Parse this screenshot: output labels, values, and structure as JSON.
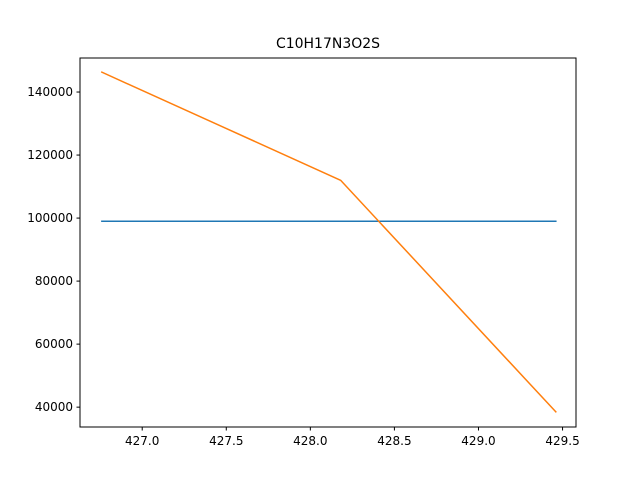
{
  "chart_data": {
    "type": "line",
    "title": "C10H17N3O2S",
    "xlabel": "",
    "ylabel": "",
    "xlim": [
      426.63,
      429.58
    ],
    "ylim": [
      33700,
      150800
    ],
    "x_ticks": [
      427.0,
      427.5,
      428.0,
      428.5,
      429.0,
      429.5
    ],
    "x_tick_labels": [
      "427.0",
      "427.5",
      "428.0",
      "428.5",
      "429.0",
      "429.5"
    ],
    "y_ticks": [
      40000,
      60000,
      80000,
      100000,
      120000,
      140000
    ],
    "y_tick_labels": [
      "40000",
      "60000",
      "80000",
      "100000",
      "120000",
      "140000"
    ],
    "grid": false,
    "legend": "none",
    "series": [
      {
        "color": "#1f77b4",
        "x": [
          426.76,
          429.46
        ],
        "y": [
          99000,
          99000
        ]
      },
      {
        "color": "#ff7f0e",
        "x": [
          426.76,
          428.18,
          429.46
        ],
        "y": [
          146300,
          112000,
          38500
        ]
      }
    ]
  }
}
